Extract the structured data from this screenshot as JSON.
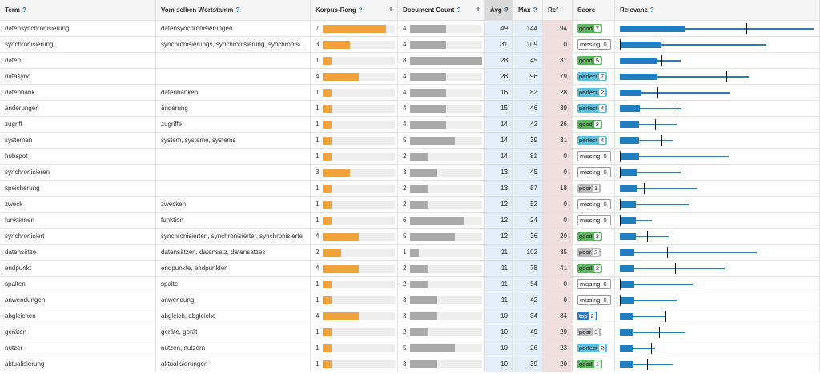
{
  "table": {
    "help_icon": "?",
    "headers": [
      "Term",
      "Vom selben Wortstamm",
      "Korpus-Rang",
      "Document Count",
      "Avg",
      "Max",
      "Ref",
      "Score",
      "Relevanz"
    ],
    "rows": [
      {
        "term": "datensynchronisierung",
        "stems": "datensynchronisierungen",
        "rank": 7,
        "docs": 4,
        "avg": 49,
        "max": 144,
        "ref": 94,
        "score": "good",
        "score_n": 7
      },
      {
        "term": "synchronisierung",
        "stems": "synchronisierungs, synchronisierung, synchronisi...",
        "rank": 3,
        "docs": 4,
        "avg": 31,
        "max": 109,
        "ref": 0,
        "score": "missing",
        "score_n": 0
      },
      {
        "term": "daten",
        "stems": null,
        "rank": 1,
        "docs": 8,
        "avg": 28,
        "max": 45,
        "ref": 31,
        "score": "good",
        "score_n": 5
      },
      {
        "term": "datasync",
        "stems": null,
        "rank": 4,
        "docs": 4,
        "avg": 28,
        "max": 96,
        "ref": 79,
        "score": "perfect",
        "score_n": 7
      },
      {
        "term": "datenbank",
        "stems": "datenbanken",
        "rank": 1,
        "docs": 4,
        "avg": 16,
        "max": 82,
        "ref": 28,
        "score": "perfect",
        "score_n": 2
      },
      {
        "term": "änderungen",
        "stems": "änderung",
        "rank": 1,
        "docs": 4,
        "avg": 15,
        "max": 46,
        "ref": 39,
        "score": "perfect",
        "score_n": 4
      },
      {
        "term": "zugriff",
        "stems": "zugriffe",
        "rank": 1,
        "docs": 4,
        "avg": 14,
        "max": 42,
        "ref": 26,
        "score": "good",
        "score_n": 2
      },
      {
        "term": "systemen",
        "stems": "system, systeme, systems",
        "rank": 1,
        "docs": 5,
        "avg": 14,
        "max": 39,
        "ref": 31,
        "score": "perfect",
        "score_n": 4
      },
      {
        "term": "hubspot",
        "stems": null,
        "rank": 1,
        "docs": 2,
        "avg": 14,
        "max": 81,
        "ref": 0,
        "score": "missing",
        "score_n": 0
      },
      {
        "term": "synchronisieren",
        "stems": null,
        "rank": 3,
        "docs": 3,
        "avg": 13,
        "max": 45,
        "ref": 0,
        "score": "missing",
        "score_n": 0
      },
      {
        "term": "speicherung",
        "stems": null,
        "rank": 1,
        "docs": 2,
        "avg": 13,
        "max": 57,
        "ref": 18,
        "score": "poor",
        "score_n": 1
      },
      {
        "term": "zweck",
        "stems": "zwecken",
        "rank": 1,
        "docs": 2,
        "avg": 12,
        "max": 52,
        "ref": 0,
        "score": "missing",
        "score_n": 0
      },
      {
        "term": "funktionen",
        "stems": "funktion",
        "rank": 1,
        "docs": 6,
        "avg": 12,
        "max": 24,
        "ref": 0,
        "score": "missing",
        "score_n": 0
      },
      {
        "term": "synchronisiert",
        "stems": "synchronisierten, synchronisierter, synchronisierte",
        "rank": 4,
        "docs": 5,
        "avg": 12,
        "max": 36,
        "ref": 20,
        "score": "good",
        "score_n": 3
      },
      {
        "term": "datensätze",
        "stems": "datensätzen, datensatz, datensatzes",
        "rank": 2,
        "docs": 1,
        "avg": 11,
        "max": 102,
        "ref": 35,
        "score": "poor",
        "score_n": 2
      },
      {
        "term": "endpunkt",
        "stems": "endpunkte, endpunkten",
        "rank": 4,
        "docs": 2,
        "avg": 11,
        "max": 78,
        "ref": 41,
        "score": "good",
        "score_n": 2
      },
      {
        "term": "spalten",
        "stems": "spalte",
        "rank": 1,
        "docs": 2,
        "avg": 11,
        "max": 54,
        "ref": 0,
        "score": "missing",
        "score_n": 0
      },
      {
        "term": "anwendungen",
        "stems": "anwendung",
        "rank": 1,
        "docs": 3,
        "avg": 11,
        "max": 42,
        "ref": 0,
        "score": "missing",
        "score_n": 0
      },
      {
        "term": "abgleichen",
        "stems": "abgleich, abgleiche",
        "rank": 4,
        "docs": 3,
        "avg": 10,
        "max": 34,
        "ref": 34,
        "score": "top",
        "score_n": 2
      },
      {
        "term": "geräten",
        "stems": "geräte, gerät",
        "rank": 1,
        "docs": 2,
        "avg": 10,
        "max": 49,
        "ref": 29,
        "score": "poor",
        "score_n": 3
      },
      {
        "term": "nutzer",
        "stems": "nutzen, nutzern",
        "rank": 1,
        "docs": 5,
        "avg": 10,
        "max": 26,
        "ref": 23,
        "score": "perfect",
        "score_n": 2
      },
      {
        "term": "aktualisierung",
        "stems": "aktualisierungen",
        "rank": 1,
        "docs": 3,
        "avg": 10,
        "max": 39,
        "ref": 20,
        "score": "good",
        "score_n": 1
      }
    ]
  }
}
